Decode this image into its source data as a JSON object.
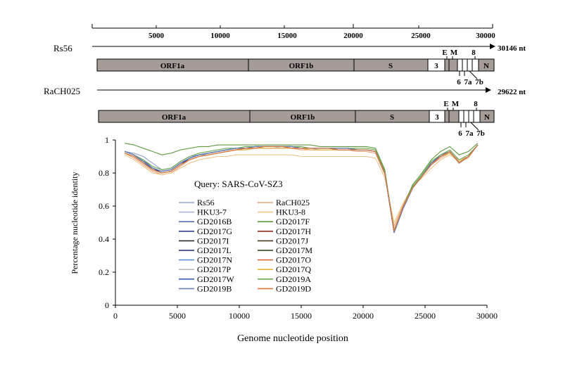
{
  "genome_map": {
    "ruler_ticks": [
      "5000",
      "10000",
      "15000",
      "20000",
      "25000",
      "30000"
    ],
    "rs56": {
      "name": "Rs56",
      "length_label": "30146 nt",
      "segments": [
        {
          "label": "ORF1a",
          "fill": "#a59c98"
        },
        {
          "label": "ORF1b",
          "fill": "#a59c98"
        },
        {
          "label": "S",
          "fill": "#a59c98"
        },
        {
          "label": "3",
          "fill": "#ffffff"
        },
        {
          "label": "",
          "fill": "#a59c98"
        },
        {
          "label": "",
          "fill": "#a59c98"
        },
        {
          "label": "",
          "fill": "#ffffff"
        },
        {
          "label": "N",
          "fill": "#a59c98"
        }
      ],
      "top_labels": {
        "e": "E",
        "m": "M",
        "eight": "8"
      },
      "bottom_labels": {
        "six": "6",
        "seven_a": "7a",
        "seven_b": "7b"
      }
    },
    "racho025": {
      "name": "RaCH025",
      "length_label": "29622 nt",
      "segments": [
        {
          "label": "ORF1a",
          "fill": "#a59c98"
        },
        {
          "label": "ORF1b",
          "fill": "#a59c98"
        },
        {
          "label": "S",
          "fill": "#a59c98"
        },
        {
          "label": "3",
          "fill": "#ffffff"
        },
        {
          "label": "",
          "fill": "#a59c98"
        },
        {
          "label": "",
          "fill": "#a59c98"
        },
        {
          "label": "",
          "fill": "#ffffff"
        },
        {
          "label": "N",
          "fill": "#a59c98"
        }
      ],
      "top_labels": {
        "e": "E",
        "m": "M",
        "eight": "8"
      },
      "bottom_labels": {
        "six": "6",
        "seven_a": "7a",
        "seven_b": "7b"
      }
    }
  },
  "chart_data": {
    "type": "line",
    "title": "",
    "annotation": "Query: SARS-CoV-SZ3",
    "xlabel": "Genome nucleotide position",
    "ylabel": "Percentage nucleotide identity",
    "xlim": [
      0,
      30000
    ],
    "ylim": [
      0,
      1
    ],
    "x_ticks": [
      "0",
      "5000",
      "10000",
      "15000",
      "20000",
      "25000",
      "30000"
    ],
    "y_ticks": [
      "0",
      "0.2",
      "0.4",
      "0.6",
      "0.8",
      "1"
    ],
    "grid": false,
    "legend_position": "center-left",
    "x": [
      750,
      1500,
      2250,
      3000,
      3750,
      4500,
      5250,
      6000,
      6750,
      7500,
      8250,
      9000,
      9750,
      10500,
      11250,
      12000,
      12750,
      13500,
      14250,
      15000,
      15750,
      16500,
      17250,
      18000,
      18750,
      19500,
      20250,
      21000,
      21750,
      22500,
      23250,
      24000,
      24750,
      25500,
      26250,
      27000,
      27750,
      28500,
      29250
    ],
    "series": [
      {
        "name": "Rs56",
        "color": "#8fa6cf",
        "values": [
          0.93,
          0.92,
          0.9,
          0.86,
          0.82,
          0.83,
          0.87,
          0.9,
          0.91,
          0.91,
          0.92,
          0.93,
          0.94,
          0.94,
          0.95,
          0.95,
          0.95,
          0.95,
          0.95,
          0.95,
          0.94,
          0.94,
          0.94,
          0.94,
          0.94,
          0.94,
          0.94,
          0.93,
          0.8,
          0.45,
          0.6,
          0.72,
          0.78,
          0.85,
          0.9,
          0.93,
          0.87,
          0.9,
          0.97
        ]
      },
      {
        "name": "RaCH025",
        "color": "#e8a07a",
        "values": [
          0.92,
          0.89,
          0.85,
          0.81,
          0.79,
          0.8,
          0.84,
          0.88,
          0.9,
          0.91,
          0.92,
          0.93,
          0.94,
          0.94,
          0.95,
          0.95,
          0.95,
          0.95,
          0.95,
          0.94,
          0.94,
          0.94,
          0.94,
          0.94,
          0.94,
          0.93,
          0.93,
          0.92,
          0.79,
          0.48,
          0.61,
          0.72,
          0.78,
          0.85,
          0.89,
          0.92,
          0.88,
          0.9,
          0.97
        ]
      },
      {
        "name": "HKU3-7",
        "color": "#a9b6d6",
        "values": [
          0.92,
          0.9,
          0.87,
          0.82,
          0.8,
          0.81,
          0.85,
          0.88,
          0.9,
          0.91,
          0.92,
          0.93,
          0.94,
          0.95,
          0.95,
          0.96,
          0.96,
          0.95,
          0.95,
          0.95,
          0.95,
          0.94,
          0.94,
          0.94,
          0.94,
          0.94,
          0.94,
          0.93,
          0.8,
          0.46,
          0.6,
          0.71,
          0.78,
          0.85,
          0.9,
          0.92,
          0.87,
          0.9,
          0.97
        ]
      },
      {
        "name": "HKU3-8",
        "color": "#f0c48a",
        "values": [
          0.91,
          0.88,
          0.84,
          0.8,
          0.79,
          0.8,
          0.83,
          0.86,
          0.88,
          0.89,
          0.9,
          0.9,
          0.91,
          0.91,
          0.91,
          0.91,
          0.91,
          0.91,
          0.91,
          0.9,
          0.9,
          0.9,
          0.9,
          0.9,
          0.9,
          0.9,
          0.9,
          0.89,
          0.77,
          0.5,
          0.62,
          0.72,
          0.77,
          0.83,
          0.88,
          0.91,
          0.87,
          0.89,
          0.97
        ]
      },
      {
        "name": "GD2016B",
        "color": "#5a6fae",
        "values": [
          0.93,
          0.91,
          0.88,
          0.83,
          0.81,
          0.82,
          0.86,
          0.89,
          0.91,
          0.92,
          0.93,
          0.94,
          0.95,
          0.95,
          0.96,
          0.96,
          0.96,
          0.96,
          0.95,
          0.95,
          0.95,
          0.95,
          0.95,
          0.95,
          0.95,
          0.94,
          0.94,
          0.93,
          0.81,
          0.44,
          0.59,
          0.71,
          0.78,
          0.86,
          0.91,
          0.93,
          0.86,
          0.9,
          0.97
        ]
      },
      {
        "name": "GD2017F",
        "color": "#5e9a3c",
        "values": [
          0.98,
          0.97,
          0.95,
          0.93,
          0.91,
          0.92,
          0.94,
          0.95,
          0.96,
          0.96,
          0.97,
          0.97,
          0.97,
          0.97,
          0.97,
          0.97,
          0.97,
          0.97,
          0.97,
          0.97,
          0.97,
          0.96,
          0.96,
          0.96,
          0.96,
          0.96,
          0.96,
          0.95,
          0.82,
          0.45,
          0.6,
          0.73,
          0.8,
          0.88,
          0.93,
          0.96,
          0.91,
          0.93,
          0.98
        ]
      },
      {
        "name": "GD2017G",
        "color": "#2f3f8a",
        "values": [
          0.93,
          0.91,
          0.87,
          0.82,
          0.8,
          0.81,
          0.85,
          0.89,
          0.91,
          0.92,
          0.93,
          0.94,
          0.95,
          0.95,
          0.96,
          0.96,
          0.96,
          0.96,
          0.96,
          0.95,
          0.95,
          0.95,
          0.95,
          0.95,
          0.95,
          0.94,
          0.94,
          0.93,
          0.8,
          0.44,
          0.59,
          0.71,
          0.78,
          0.86,
          0.9,
          0.93,
          0.86,
          0.9,
          0.97
        ]
      },
      {
        "name": "GD2017H",
        "color": "#8a2a1e",
        "values": [
          0.92,
          0.9,
          0.86,
          0.82,
          0.8,
          0.81,
          0.85,
          0.88,
          0.9,
          0.91,
          0.92,
          0.93,
          0.94,
          0.95,
          0.95,
          0.96,
          0.96,
          0.96,
          0.95,
          0.95,
          0.95,
          0.95,
          0.95,
          0.94,
          0.94,
          0.94,
          0.94,
          0.93,
          0.8,
          0.45,
          0.6,
          0.71,
          0.78,
          0.85,
          0.9,
          0.93,
          0.86,
          0.9,
          0.97
        ]
      },
      {
        "name": "GD2017I",
        "color": "#2b2b2b",
        "values": [
          0.93,
          0.91,
          0.87,
          0.83,
          0.81,
          0.82,
          0.86,
          0.89,
          0.91,
          0.92,
          0.93,
          0.94,
          0.95,
          0.95,
          0.96,
          0.96,
          0.96,
          0.96,
          0.96,
          0.95,
          0.95,
          0.95,
          0.95,
          0.95,
          0.95,
          0.94,
          0.94,
          0.93,
          0.8,
          0.44,
          0.59,
          0.71,
          0.78,
          0.86,
          0.9,
          0.93,
          0.86,
          0.9,
          0.97
        ]
      },
      {
        "name": "GD2017J",
        "color": "#4d3a1a",
        "values": [
          0.93,
          0.91,
          0.87,
          0.83,
          0.81,
          0.82,
          0.86,
          0.89,
          0.91,
          0.92,
          0.93,
          0.94,
          0.95,
          0.95,
          0.96,
          0.96,
          0.96,
          0.96,
          0.96,
          0.95,
          0.95,
          0.95,
          0.95,
          0.95,
          0.95,
          0.94,
          0.94,
          0.93,
          0.8,
          0.45,
          0.59,
          0.71,
          0.78,
          0.86,
          0.9,
          0.93,
          0.86,
          0.9,
          0.97
        ]
      },
      {
        "name": "GD2017L",
        "color": "#1e2a6e",
        "values": [
          0.93,
          0.91,
          0.87,
          0.83,
          0.8,
          0.81,
          0.85,
          0.89,
          0.91,
          0.92,
          0.93,
          0.94,
          0.95,
          0.95,
          0.96,
          0.96,
          0.96,
          0.96,
          0.96,
          0.95,
          0.95,
          0.95,
          0.95,
          0.95,
          0.95,
          0.94,
          0.94,
          0.93,
          0.8,
          0.44,
          0.59,
          0.71,
          0.78,
          0.86,
          0.9,
          0.93,
          0.86,
          0.9,
          0.97
        ]
      },
      {
        "name": "GD2017M",
        "color": "#243d12",
        "values": [
          0.93,
          0.91,
          0.87,
          0.83,
          0.81,
          0.82,
          0.86,
          0.89,
          0.91,
          0.92,
          0.93,
          0.94,
          0.95,
          0.95,
          0.96,
          0.96,
          0.96,
          0.96,
          0.96,
          0.95,
          0.95,
          0.95,
          0.95,
          0.95,
          0.95,
          0.94,
          0.94,
          0.93,
          0.8,
          0.45,
          0.59,
          0.71,
          0.78,
          0.86,
          0.9,
          0.93,
          0.86,
          0.9,
          0.97
        ]
      },
      {
        "name": "GD2017N",
        "color": "#5b8fd4",
        "values": [
          0.93,
          0.91,
          0.87,
          0.83,
          0.81,
          0.82,
          0.86,
          0.89,
          0.91,
          0.92,
          0.93,
          0.94,
          0.95,
          0.95,
          0.96,
          0.96,
          0.96,
          0.96,
          0.96,
          0.95,
          0.95,
          0.95,
          0.95,
          0.95,
          0.95,
          0.94,
          0.94,
          0.93,
          0.8,
          0.44,
          0.59,
          0.71,
          0.78,
          0.86,
          0.9,
          0.93,
          0.86,
          0.9,
          0.97
        ]
      },
      {
        "name": "GD2017O",
        "color": "#e0673a",
        "values": [
          0.92,
          0.9,
          0.86,
          0.82,
          0.8,
          0.81,
          0.85,
          0.88,
          0.9,
          0.91,
          0.92,
          0.93,
          0.94,
          0.95,
          0.95,
          0.96,
          0.96,
          0.96,
          0.95,
          0.95,
          0.95,
          0.95,
          0.95,
          0.94,
          0.94,
          0.94,
          0.94,
          0.93,
          0.8,
          0.45,
          0.6,
          0.71,
          0.78,
          0.85,
          0.9,
          0.93,
          0.86,
          0.9,
          0.97
        ]
      },
      {
        "name": "GD2017P",
        "color": "#b9b9b9",
        "values": [
          0.92,
          0.9,
          0.86,
          0.82,
          0.8,
          0.81,
          0.85,
          0.88,
          0.9,
          0.91,
          0.92,
          0.93,
          0.94,
          0.94,
          0.95,
          0.95,
          0.95,
          0.95,
          0.95,
          0.95,
          0.94,
          0.94,
          0.94,
          0.94,
          0.94,
          0.94,
          0.94,
          0.93,
          0.8,
          0.45,
          0.6,
          0.71,
          0.78,
          0.85,
          0.9,
          0.92,
          0.87,
          0.9,
          0.97
        ]
      },
      {
        "name": "GD2017Q",
        "color": "#e8b43a",
        "values": [
          0.92,
          0.9,
          0.86,
          0.82,
          0.8,
          0.81,
          0.85,
          0.88,
          0.9,
          0.91,
          0.92,
          0.93,
          0.94,
          0.94,
          0.95,
          0.95,
          0.95,
          0.95,
          0.95,
          0.95,
          0.94,
          0.94,
          0.94,
          0.94,
          0.94,
          0.94,
          0.94,
          0.93,
          0.8,
          0.46,
          0.6,
          0.71,
          0.78,
          0.85,
          0.9,
          0.92,
          0.87,
          0.9,
          0.97
        ]
      },
      {
        "name": "GD2017W",
        "color": "#3c63b5",
        "values": [
          0.93,
          0.91,
          0.87,
          0.83,
          0.81,
          0.82,
          0.86,
          0.89,
          0.91,
          0.92,
          0.93,
          0.94,
          0.95,
          0.95,
          0.96,
          0.96,
          0.96,
          0.96,
          0.96,
          0.95,
          0.95,
          0.95,
          0.95,
          0.95,
          0.95,
          0.94,
          0.94,
          0.93,
          0.8,
          0.44,
          0.59,
          0.71,
          0.78,
          0.86,
          0.9,
          0.93,
          0.86,
          0.9,
          0.97
        ]
      },
      {
        "name": "GD2019A",
        "color": "#6aa84f",
        "values": [
          0.93,
          0.91,
          0.88,
          0.84,
          0.82,
          0.83,
          0.87,
          0.9,
          0.92,
          0.93,
          0.94,
          0.95,
          0.95,
          0.96,
          0.96,
          0.96,
          0.96,
          0.96,
          0.96,
          0.96,
          0.95,
          0.95,
          0.95,
          0.95,
          0.95,
          0.95,
          0.95,
          0.94,
          0.81,
          0.45,
          0.6,
          0.72,
          0.79,
          0.87,
          0.91,
          0.94,
          0.88,
          0.91,
          0.97
        ]
      },
      {
        "name": "GD2019B",
        "color": "#6f7fb8",
        "values": [
          0.93,
          0.91,
          0.87,
          0.83,
          0.81,
          0.82,
          0.86,
          0.89,
          0.91,
          0.92,
          0.93,
          0.94,
          0.95,
          0.95,
          0.96,
          0.96,
          0.96,
          0.96,
          0.96,
          0.95,
          0.95,
          0.95,
          0.95,
          0.95,
          0.95,
          0.94,
          0.94,
          0.93,
          0.8,
          0.44,
          0.59,
          0.71,
          0.78,
          0.86,
          0.9,
          0.93,
          0.86,
          0.9,
          0.97
        ]
      },
      {
        "name": "GD2019D",
        "color": "#d9763f",
        "values": [
          0.92,
          0.9,
          0.86,
          0.82,
          0.8,
          0.81,
          0.85,
          0.88,
          0.9,
          0.91,
          0.92,
          0.93,
          0.94,
          0.95,
          0.95,
          0.96,
          0.96,
          0.96,
          0.95,
          0.95,
          0.95,
          0.95,
          0.95,
          0.94,
          0.94,
          0.94,
          0.94,
          0.93,
          0.8,
          0.45,
          0.6,
          0.71,
          0.78,
          0.85,
          0.9,
          0.93,
          0.86,
          0.9,
          0.97
        ]
      }
    ]
  }
}
